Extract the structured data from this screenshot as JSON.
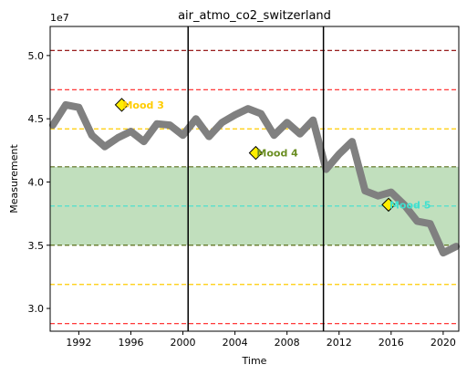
{
  "chart_data": {
    "type": "line",
    "title": "air_atmo_co2_switzerland",
    "xlabel": "Time",
    "ylabel": "Measurement",
    "y_offset_label": "1e7",
    "xlim": [
      1989.8,
      2021.2
    ],
    "ylim": [
      28200000,
      52300000
    ],
    "x_ticks": [
      1992,
      1996,
      2000,
      2004,
      2008,
      2012,
      2016,
      2020
    ],
    "y_ticks": [
      30000000,
      35000000,
      40000000,
      45000000,
      50000000
    ],
    "x_tick_labels": [
      "1992",
      "1996",
      "2000",
      "2004",
      "2008",
      "2012",
      "2016",
      "2020"
    ],
    "y_tick_labels": [
      "3.0",
      "3.5",
      "4.0",
      "4.5",
      "5.0"
    ],
    "grid": false,
    "series": [
      {
        "color": "#808080",
        "x": [
          1990,
          1991,
          1992,
          1993,
          1994,
          1995,
          1996,
          1997,
          1998,
          1999,
          2000,
          2001,
          2002,
          2003,
          2004,
          2005,
          2006,
          2007,
          2008,
          2009,
          2010,
          2011,
          2012,
          2013,
          2014,
          2015,
          2016,
          2017,
          2018,
          2019,
          2020,
          2021
        ],
        "y": [
          44500000,
          46100000,
          45900000,
          43700000,
          42800000,
          43500000,
          44000000,
          43200000,
          44600000,
          44500000,
          43700000,
          45000000,
          43600000,
          44700000,
          45300000,
          45800000,
          45400000,
          43700000,
          44700000,
          43800000,
          44900000,
          41000000,
          42200000,
          43200000,
          39300000,
          38900000,
          39200000,
          38200000,
          36900000,
          36700000,
          34400000,
          34900000
        ]
      }
    ],
    "band": {
      "from": 35000000,
      "to": 41200000,
      "color": "#c1dfbd",
      "edge_color": "#5a6e1a"
    },
    "horizontal_lines": [
      {
        "y": 50400000,
        "color": "#8b0000"
      },
      {
        "y": 47300000,
        "color": "#ff2020"
      },
      {
        "y": 44200000,
        "color": "#ffcc00"
      },
      {
        "y": 41200000,
        "color": "#5a6e1a"
      },
      {
        "y": 38100000,
        "color": "#40e0d0"
      },
      {
        "y": 35000000,
        "color": "#5a6e1a"
      },
      {
        "y": 31900000,
        "color": "#ffcc00"
      },
      {
        "y": 28800000,
        "color": "#ff2020"
      }
    ],
    "vertical_lines": [
      {
        "x": 2000.4,
        "color": "#000000"
      },
      {
        "x": 2010.8,
        "color": "#000000"
      }
    ],
    "annotations": [
      {
        "label": "Mood 3",
        "x": 1995.3,
        "y": 46100000,
        "text_color": "#ffcc00",
        "marker_color": "#ffee00"
      },
      {
        "label": "Mood 4",
        "x": 2005.6,
        "y": 42300000,
        "text_color": "#6b8e23",
        "marker_color": "#ffee00"
      },
      {
        "label": "Mood 5",
        "x": 2015.8,
        "y": 38200000,
        "text_color": "#40e0d0",
        "marker_color": "#ffee00"
      }
    ]
  }
}
